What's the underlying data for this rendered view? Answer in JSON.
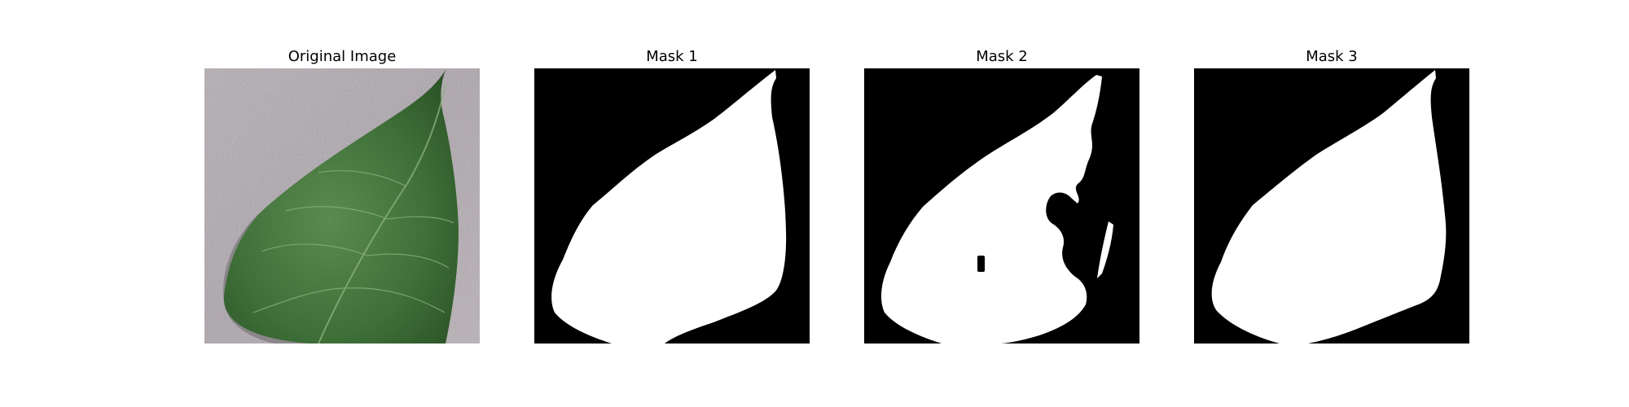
{
  "panels": [
    {
      "title": "Original Image",
      "kind": "photo"
    },
    {
      "title": "Mask 1",
      "kind": "mask"
    },
    {
      "title": "Mask 2",
      "kind": "mask"
    },
    {
      "title": "Mask 3",
      "kind": "mask"
    }
  ],
  "colors": {
    "background": "#ffffff",
    "mask_background": "#000000",
    "mask_foreground": "#ffffff",
    "photo_background": "#b1a9b0",
    "leaf_dark": "#2f5f2b",
    "leaf_mid": "#4c7d43",
    "leaf_light": "#6f9a63"
  }
}
